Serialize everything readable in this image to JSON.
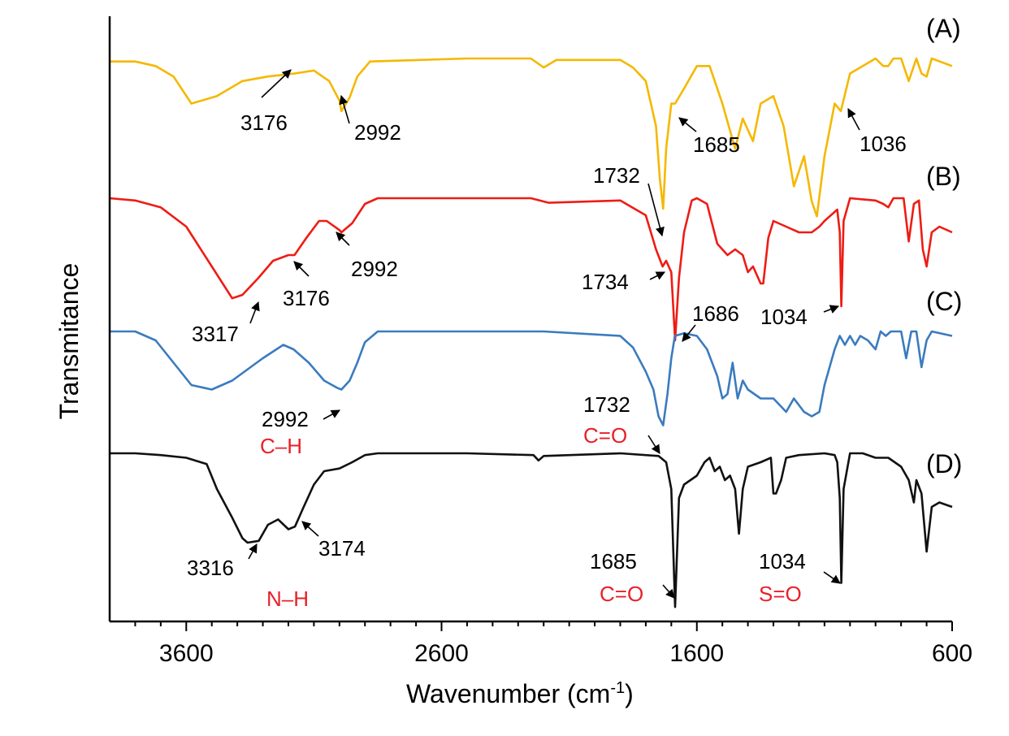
{
  "chart_data": {
    "type": "line",
    "title": "",
    "xlabel": "Wavenumber (cm",
    "xlabel_sup": "-1",
    "xlabel_close": ")",
    "ylabel": "Transmitance",
    "xlim": [
      3900,
      600
    ],
    "x_ticks": [
      3600,
      2600,
      1600,
      600
    ],
    "x_tick_labels": [
      "3600",
      "2600",
      "1600",
      "600"
    ],
    "grid": false,
    "series": [
      {
        "name": "(A)",
        "color": "#f5b800",
        "points": [
          [
            3900,
            0.02
          ],
          [
            3800,
            0.02
          ],
          [
            3720,
            0.05
          ],
          [
            3650,
            0.12
          ],
          [
            3580,
            0.3
          ],
          [
            3480,
            0.25
          ],
          [
            3380,
            0.15
          ],
          [
            3280,
            0.12
          ],
          [
            3176,
            0.1
          ],
          [
            3100,
            0.08
          ],
          [
            3040,
            0.15
          ],
          [
            3000,
            0.28
          ],
          [
            2992,
            0.35
          ],
          [
            2960,
            0.26
          ],
          [
            2930,
            0.12
          ],
          [
            2880,
            0.02
          ],
          [
            2500,
            0.0
          ],
          [
            2250,
            0.0
          ],
          [
            2200,
            0.06
          ],
          [
            2150,
            0.01
          ],
          [
            1900,
            0.01
          ],
          [
            1850,
            0.06
          ],
          [
            1800,
            0.15
          ],
          [
            1760,
            0.45
          ],
          [
            1745,
            0.8
          ],
          [
            1732,
            1.0
          ],
          [
            1720,
            0.6
          ],
          [
            1700,
            0.3
          ],
          [
            1685,
            0.3
          ],
          [
            1650,
            0.2
          ],
          [
            1600,
            0.05
          ],
          [
            1550,
            0.05
          ],
          [
            1500,
            0.3
          ],
          [
            1450,
            0.6
          ],
          [
            1420,
            0.4
          ],
          [
            1380,
            0.55
          ],
          [
            1350,
            0.3
          ],
          [
            1300,
            0.25
          ],
          [
            1260,
            0.45
          ],
          [
            1220,
            0.85
          ],
          [
            1180,
            0.65
          ],
          [
            1150,
            0.95
          ],
          [
            1130,
            1.05
          ],
          [
            1100,
            0.65
          ],
          [
            1060,
            0.3
          ],
          [
            1036,
            0.35
          ],
          [
            1000,
            0.1
          ],
          [
            950,
            0.05
          ],
          [
            900,
            0.0
          ],
          [
            870,
            0.05
          ],
          [
            850,
            0.05
          ],
          [
            830,
            0.0
          ],
          [
            800,
            0.0
          ],
          [
            770,
            0.15
          ],
          [
            740,
            0.0
          ],
          [
            720,
            0.1
          ],
          [
            700,
            0.12
          ],
          [
            680,
            0.0
          ],
          [
            600,
            0.05
          ]
        ]
      },
      {
        "name": "(B)",
        "color": "#ee1c14",
        "points": [
          [
            3900,
            0.0
          ],
          [
            3800,
            0.02
          ],
          [
            3700,
            0.08
          ],
          [
            3600,
            0.25
          ],
          [
            3500,
            0.6
          ],
          [
            3420,
            0.88
          ],
          [
            3380,
            0.85
          ],
          [
            3317,
            0.7
          ],
          [
            3260,
            0.55
          ],
          [
            3200,
            0.5
          ],
          [
            3176,
            0.5
          ],
          [
            3130,
            0.35
          ],
          [
            3080,
            0.2
          ],
          [
            3050,
            0.2
          ],
          [
            3000,
            0.28
          ],
          [
            2992,
            0.3
          ],
          [
            2950,
            0.22
          ],
          [
            2900,
            0.05
          ],
          [
            2850,
            0.0
          ],
          [
            2500,
            0.0
          ],
          [
            2250,
            0.0
          ],
          [
            2180,
            0.04
          ],
          [
            1900,
            0.02
          ],
          [
            1800,
            0.15
          ],
          [
            1760,
            0.45
          ],
          [
            1734,
            0.6
          ],
          [
            1720,
            0.55
          ],
          [
            1700,
            0.65
          ],
          [
            1685,
            1.25
          ],
          [
            1670,
            0.7
          ],
          [
            1650,
            0.3
          ],
          [
            1620,
            0.02
          ],
          [
            1600,
            0.0
          ],
          [
            1560,
            0.05
          ],
          [
            1520,
            0.4
          ],
          [
            1480,
            0.5
          ],
          [
            1450,
            0.45
          ],
          [
            1420,
            0.5
          ],
          [
            1400,
            0.65
          ],
          [
            1380,
            0.6
          ],
          [
            1350,
            0.75
          ],
          [
            1340,
            0.75
          ],
          [
            1320,
            0.35
          ],
          [
            1300,
            0.2
          ],
          [
            1250,
            0.25
          ],
          [
            1200,
            0.3
          ],
          [
            1150,
            0.3
          ],
          [
            1120,
            0.25
          ],
          [
            1100,
            0.2
          ],
          [
            1050,
            0.1
          ],
          [
            1040,
            0.3
          ],
          [
            1034,
            0.95
          ],
          [
            1025,
            0.2
          ],
          [
            1000,
            0.0
          ],
          [
            950,
            0.01
          ],
          [
            900,
            0.02
          ],
          [
            870,
            0.05
          ],
          [
            850,
            0.08
          ],
          [
            830,
            0.0
          ],
          [
            790,
            0.0
          ],
          [
            770,
            0.38
          ],
          [
            750,
            0.05
          ],
          [
            730,
            0.02
          ],
          [
            715,
            0.45
          ],
          [
            700,
            0.6
          ],
          [
            680,
            0.3
          ],
          [
            650,
            0.25
          ],
          [
            600,
            0.3
          ]
        ]
      },
      {
        "name": "(C)",
        "color": "#3a7bbf",
        "points": [
          [
            3900,
            0.0
          ],
          [
            3800,
            0.0
          ],
          [
            3720,
            0.1
          ],
          [
            3650,
            0.35
          ],
          [
            3580,
            0.6
          ],
          [
            3500,
            0.65
          ],
          [
            3420,
            0.55
          ],
          [
            3300,
            0.3
          ],
          [
            3220,
            0.15
          ],
          [
            3180,
            0.2
          ],
          [
            3120,
            0.35
          ],
          [
            3060,
            0.55
          ],
          [
            3010,
            0.63
          ],
          [
            2992,
            0.65
          ],
          [
            2960,
            0.55
          ],
          [
            2930,
            0.35
          ],
          [
            2900,
            0.12
          ],
          [
            2850,
            0.0
          ],
          [
            2500,
            0.0
          ],
          [
            2200,
            0.0
          ],
          [
            1900,
            0.05
          ],
          [
            1850,
            0.18
          ],
          [
            1800,
            0.45
          ],
          [
            1770,
            0.65
          ],
          [
            1750,
            0.95
          ],
          [
            1732,
            1.05
          ],
          [
            1715,
            0.7
          ],
          [
            1700,
            0.3
          ],
          [
            1686,
            0.05
          ],
          [
            1650,
            0.02
          ],
          [
            1600,
            0.05
          ],
          [
            1560,
            0.2
          ],
          [
            1520,
            0.5
          ],
          [
            1500,
            0.75
          ],
          [
            1480,
            0.7
          ],
          [
            1460,
            0.35
          ],
          [
            1440,
            0.75
          ],
          [
            1420,
            0.55
          ],
          [
            1400,
            0.65
          ],
          [
            1350,
            0.75
          ],
          [
            1300,
            0.75
          ],
          [
            1250,
            0.9
          ],
          [
            1220,
            0.75
          ],
          [
            1180,
            0.9
          ],
          [
            1150,
            0.95
          ],
          [
            1120,
            0.9
          ],
          [
            1100,
            0.6
          ],
          [
            1060,
            0.2
          ],
          [
            1040,
            0.05
          ],
          [
            1020,
            0.15
          ],
          [
            1000,
            0.05
          ],
          [
            980,
            0.15
          ],
          [
            960,
            0.05
          ],
          [
            930,
            0.1
          ],
          [
            900,
            0.2
          ],
          [
            880,
            0.0
          ],
          [
            860,
            0.05
          ],
          [
            840,
            0.0
          ],
          [
            800,
            0.0
          ],
          [
            780,
            0.3
          ],
          [
            760,
            0.0
          ],
          [
            740,
            0.0
          ],
          [
            720,
            0.4
          ],
          [
            700,
            0.1
          ],
          [
            680,
            0.0
          ],
          [
            600,
            0.05
          ]
        ]
      },
      {
        "name": "(D)",
        "color": "#111111",
        "points": [
          [
            3900,
            0.0
          ],
          [
            3800,
            0.0
          ],
          [
            3700,
            0.02
          ],
          [
            3600,
            0.05
          ],
          [
            3520,
            0.12
          ],
          [
            3480,
            0.4
          ],
          [
            3420,
            0.72
          ],
          [
            3380,
            0.95
          ],
          [
            3360,
            1.0
          ],
          [
            3316,
            0.98
          ],
          [
            3280,
            0.8
          ],
          [
            3240,
            0.74
          ],
          [
            3200,
            0.85
          ],
          [
            3174,
            0.82
          ],
          [
            3140,
            0.6
          ],
          [
            3100,
            0.35
          ],
          [
            3060,
            0.2
          ],
          [
            3000,
            0.17
          ],
          [
            2950,
            0.1
          ],
          [
            2900,
            0.02
          ],
          [
            2850,
            0.0
          ],
          [
            2500,
            0.0
          ],
          [
            2240,
            0.02
          ],
          [
            2220,
            0.08
          ],
          [
            2200,
            0.03
          ],
          [
            1900,
            0.0
          ],
          [
            1750,
            0.03
          ],
          [
            1720,
            0.1
          ],
          [
            1700,
            0.4
          ],
          [
            1685,
            1.72
          ],
          [
            1670,
            0.5
          ],
          [
            1650,
            0.35
          ],
          [
            1600,
            0.25
          ],
          [
            1570,
            0.1
          ],
          [
            1550,
            0.05
          ],
          [
            1530,
            0.2
          ],
          [
            1510,
            0.15
          ],
          [
            1490,
            0.3
          ],
          [
            1470,
            0.25
          ],
          [
            1450,
            0.4
          ],
          [
            1435,
            0.9
          ],
          [
            1420,
            0.4
          ],
          [
            1400,
            0.15
          ],
          [
            1350,
            0.1
          ],
          [
            1310,
            0.05
          ],
          [
            1300,
            0.45
          ],
          [
            1290,
            0.45
          ],
          [
            1270,
            0.3
          ],
          [
            1250,
            0.05
          ],
          [
            1200,
            0.02
          ],
          [
            1100,
            0.0
          ],
          [
            1060,
            0.02
          ],
          [
            1050,
            0.1
          ],
          [
            1040,
            0.5
          ],
          [
            1034,
            1.45
          ],
          [
            1025,
            0.4
          ],
          [
            1000,
            0.0
          ],
          [
            950,
            0.0
          ],
          [
            900,
            0.05
          ],
          [
            850,
            0.05
          ],
          [
            800,
            0.15
          ],
          [
            770,
            0.3
          ],
          [
            750,
            0.55
          ],
          [
            740,
            0.3
          ],
          [
            720,
            0.45
          ],
          [
            700,
            1.1
          ],
          [
            680,
            0.6
          ],
          [
            650,
            0.55
          ],
          [
            600,
            0.6
          ]
        ]
      }
    ],
    "annotations": [
      {
        "text": "3176",
        "color": "#000000",
        "series": 0
      },
      {
        "text": "2992",
        "color": "#000000",
        "series": 0
      },
      {
        "text": "1685",
        "color": "#000000",
        "series": 0
      },
      {
        "text": "1036",
        "color": "#000000",
        "series": 0
      },
      {
        "text": "1732",
        "color": "#000000",
        "series": 0
      },
      {
        "text": "1734",
        "color": "#000000",
        "series": 1
      },
      {
        "text": "3317",
        "color": "#000000",
        "series": 1
      },
      {
        "text": "3176",
        "color": "#000000",
        "series": 1
      },
      {
        "text": "2992",
        "color": "#000000",
        "series": 1
      },
      {
        "text": "1686",
        "color": "#000000",
        "series": 1
      },
      {
        "text": "1034",
        "color": "#000000",
        "series": 1
      },
      {
        "text": "2992",
        "color": "#000000",
        "series": 2
      },
      {
        "text": "C–H",
        "color": "#e8202a",
        "series": 2
      },
      {
        "text": "1732",
        "color": "#000000",
        "series": 2
      },
      {
        "text": "C=O",
        "color": "#e8202a",
        "series": 2
      },
      {
        "text": "3316",
        "color": "#000000",
        "series": 3
      },
      {
        "text": "3174",
        "color": "#000000",
        "series": 3
      },
      {
        "text": "N–H",
        "color": "#e8202a",
        "series": 3
      },
      {
        "text": "1685",
        "color": "#000000",
        "series": 3
      },
      {
        "text": "C=O",
        "color": "#e8202a",
        "series": 3
      },
      {
        "text": "1034",
        "color": "#000000",
        "series": 3
      },
      {
        "text": "S=O",
        "color": "#e8202a",
        "series": 3
      }
    ]
  }
}
